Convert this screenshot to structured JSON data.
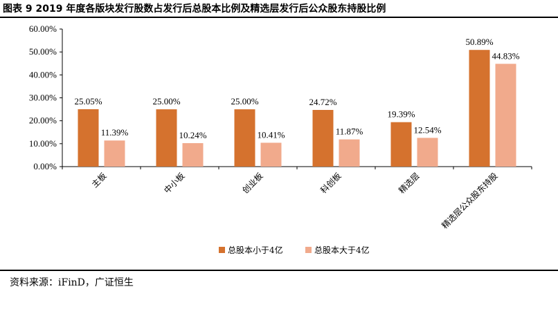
{
  "title": "图表 9 2019 年度各版块发行股数占发行后总股本比例及精选层发行后公众股东持股比例",
  "source": "资料来源：iFinD，广证恒生",
  "colors": {
    "series_small": "#D5722E",
    "series_large": "#F1AA8C"
  },
  "chart_data": {
    "type": "bar",
    "categories": [
      "主板",
      "中小板",
      "创业板",
      "科创板",
      "精选层",
      "精选层公众股东持股"
    ],
    "series": [
      {
        "name": "总股本小于4亿",
        "values": [
          25.05,
          25.0,
          25.0,
          24.72,
          19.39,
          50.89
        ],
        "labels": [
          "25.05%",
          "25.00%",
          "25.00%",
          "24.72%",
          "19.39%",
          "50.89%"
        ]
      },
      {
        "name": "总股本大于4亿",
        "values": [
          11.39,
          10.24,
          10.41,
          11.87,
          12.54,
          44.83
        ],
        "labels": [
          "11.39%",
          "10.24%",
          "10.41%",
          "11.87%",
          "12.54%",
          "44.83%"
        ]
      }
    ],
    "ylim": [
      0,
      60
    ],
    "yticks": [
      0,
      10,
      20,
      30,
      40,
      50,
      60
    ],
    "ytick_labels": [
      "0.00%",
      "10.00%",
      "20.00%",
      "30.00%",
      "40.00%",
      "50.00%",
      "60.00%"
    ],
    "grid": false,
    "legend_position": "bottom-center"
  }
}
